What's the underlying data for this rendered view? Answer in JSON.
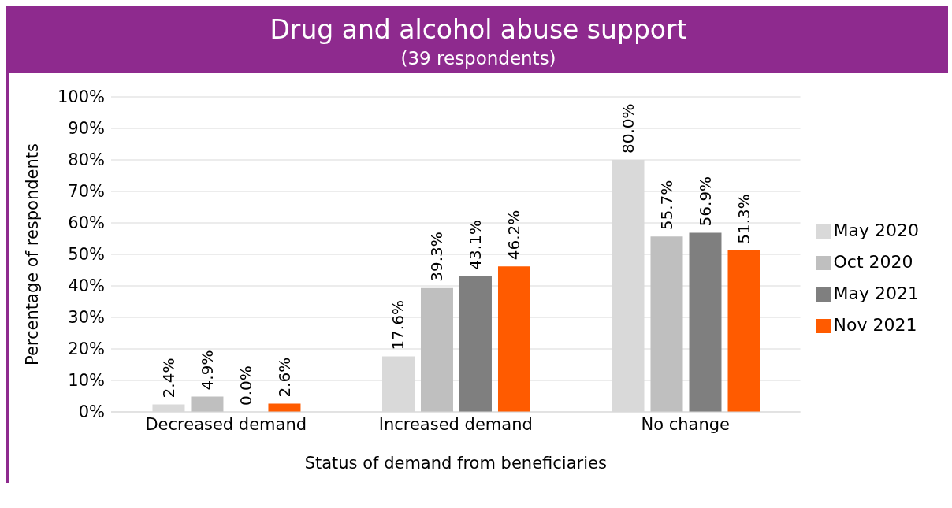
{
  "chart_data": {
    "type": "bar",
    "title": "Drug and alcohol abuse support",
    "subtitle": "(39 respondents)",
    "xlabel": "Status of demand from beneficiaries",
    "ylabel": "Percentage of respondents",
    "categories": [
      "Decreased demand",
      "Increased demand",
      "No change"
    ],
    "series": [
      {
        "name": "May 2020",
        "color": "#d9d9d9",
        "values": [
          2.4,
          17.6,
          80.0
        ],
        "value_labels": [
          "2.4%",
          "17.6%",
          "80.0%"
        ]
      },
      {
        "name": "Oct 2020",
        "color": "#bfbfbf",
        "values": [
          4.9,
          39.3,
          55.7
        ],
        "value_labels": [
          "4.9%",
          "39.3%",
          "55.7%"
        ]
      },
      {
        "name": "May 2021",
        "color": "#7f7f7f",
        "values": [
          0.0,
          43.1,
          56.9
        ],
        "value_labels": [
          "0.0%",
          "43.1%",
          "56.9%"
        ]
      },
      {
        "name": "Nov 2021",
        "color": "#ff5b00",
        "values": [
          2.6,
          46.2,
          51.3
        ],
        "value_labels": [
          "2.6%",
          "46.2%",
          "51.3%"
        ]
      }
    ],
    "ylim": [
      0,
      100
    ],
    "yticks": [
      {
        "value": 0,
        "label": "0%"
      },
      {
        "value": 10,
        "label": "10%"
      },
      {
        "value": 20,
        "label": "20%"
      },
      {
        "value": 30,
        "label": "30%"
      },
      {
        "value": 40,
        "label": "40%"
      },
      {
        "value": 50,
        "label": "50%"
      },
      {
        "value": 60,
        "label": "60%"
      },
      {
        "value": 70,
        "label": "70%"
      },
      {
        "value": 80,
        "label": "80%"
      },
      {
        "value": 90,
        "label": "90%"
      },
      {
        "value": 100,
        "label": "100%"
      }
    ],
    "grid": "y",
    "legend": "right"
  }
}
